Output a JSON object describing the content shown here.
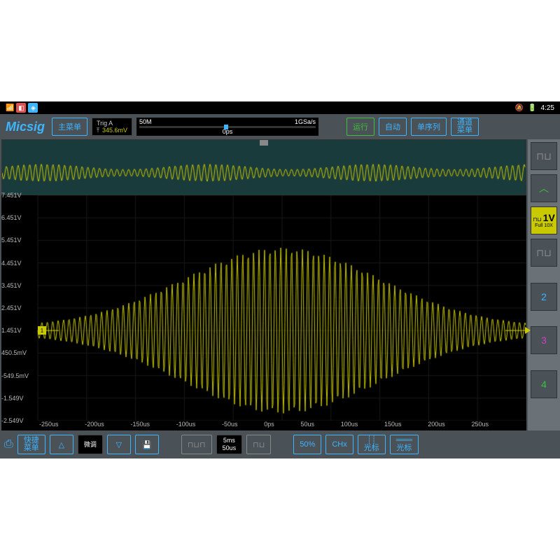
{
  "status_bar": {
    "time": "4:25",
    "icons": [
      "wifi",
      "a",
      "b",
      "c"
    ]
  },
  "brand": "Micsig",
  "top_buttons": {
    "main_menu": "主菜单",
    "run": "运行",
    "auto": "自动",
    "single": "单序列",
    "channel_menu": "通道\n菜单"
  },
  "trigger": {
    "label": "Trig A",
    "edge": "⤒",
    "value": "345.6mV"
  },
  "memory": {
    "depth": "50M",
    "rate": "1GSa/s",
    "position": "0ps"
  },
  "yaxis_labels": [
    "7.451V",
    "6.451V",
    "5.451V",
    "4.451V",
    "3.451V",
    "2.451V",
    "1.451V",
    "450.5mV",
    "-549.5mV",
    "-1.549V",
    "-2.549V"
  ],
  "xaxis_labels": [
    "-250us",
    "-200us",
    "-150us",
    "-100us",
    "-50us",
    "0ps",
    "50us",
    "100us",
    "150us",
    "200us",
    "250us"
  ],
  "sidebar": {
    "ch1": {
      "label": "1V",
      "sub1": "Full",
      "sub2": "10X"
    },
    "ch2": "2",
    "ch3": "3",
    "ch4": "4"
  },
  "bottom": {
    "quick_menu": "快捷\n菜单",
    "fine": "微调",
    "timebase1": "5ms",
    "timebase2": "50us",
    "fifty": "50%",
    "chx": "CHx",
    "cursor_v": "光标",
    "cursor_h": "光标"
  },
  "chart": {
    "signal_color": "#c9c900",
    "bg_color": "#000000",
    "grid_color": "#1a1a1a",
    "overview_bg": "#1a3b3b",
    "baseline_offset": 0.6,
    "envelope_amplitude": 0.35,
    "carrier_freq": 90
  }
}
